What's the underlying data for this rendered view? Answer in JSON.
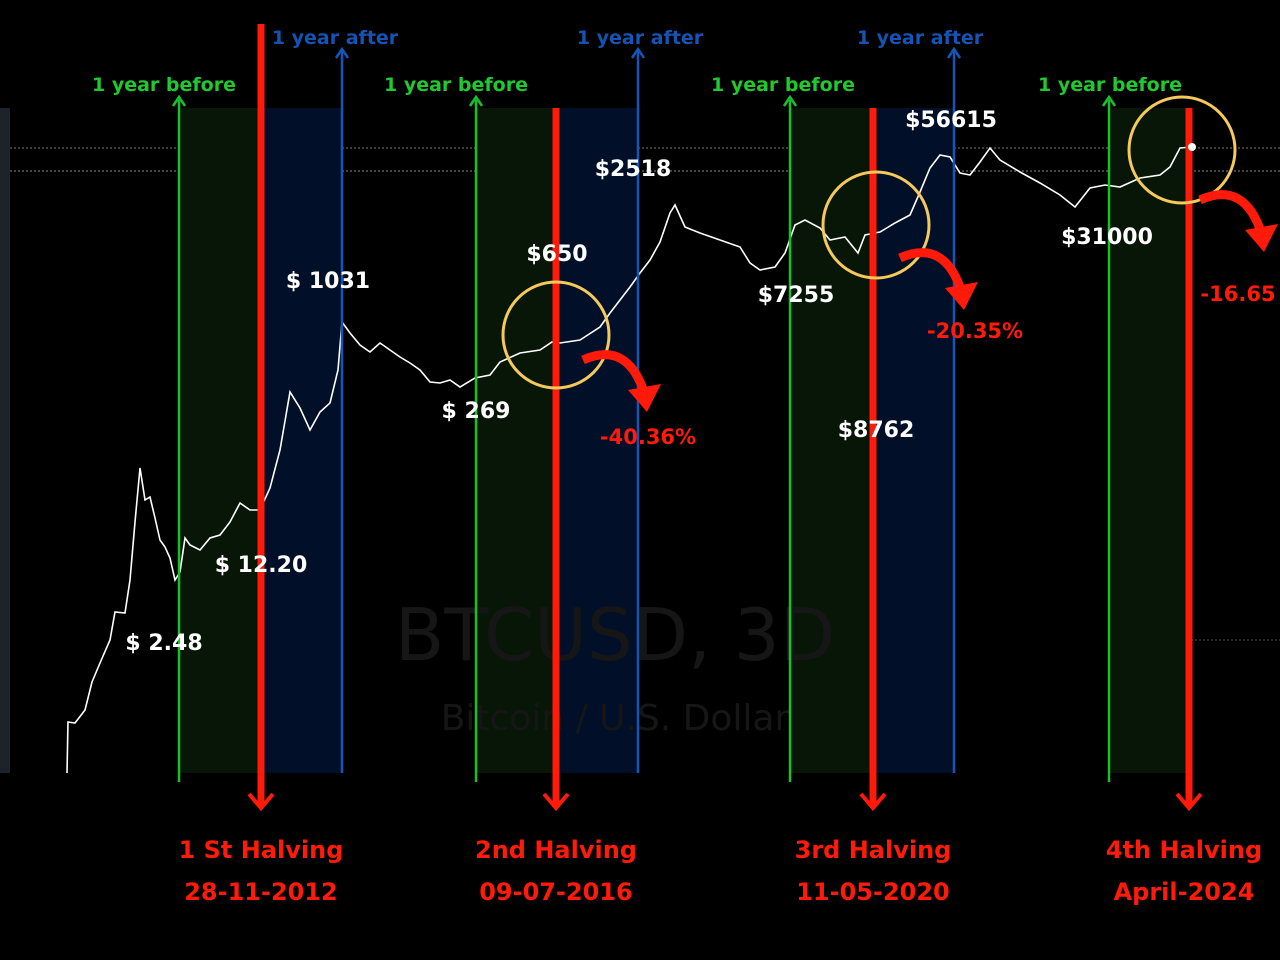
{
  "chart_data": {
    "type": "line",
    "watermark": {
      "symbol": "BTCUSD, 3D",
      "name": "Bitcoin / U.S. Dollar"
    },
    "colors": {
      "price_line": "#ffffff",
      "before_zone": "#071607",
      "after_zone": "#011028",
      "halving": "#ff1a0a",
      "before_line": "#17c12b",
      "after_line": "#1455b8",
      "circle": "#f5c95a",
      "label_before": "#1fc92f",
      "label_after": "#1553b5"
    },
    "zone_labels": {
      "before": "1 year before",
      "after": "1 year after"
    },
    "halvings": [
      {
        "name": "1 St Halving",
        "date": "28-11-2012",
        "has_after": true
      },
      {
        "name": "2nd Halving",
        "date": "09-07-2016",
        "has_after": true,
        "drop": "-40.36%"
      },
      {
        "name": "3rd Halving",
        "date": "11-05-2020",
        "has_after": true,
        "drop": "-20.35%"
      },
      {
        "name": "4th Halving",
        "date": "April-2024",
        "has_after": false,
        "drop": "-16.65"
      }
    ],
    "price_labels": [
      "$ 2.48",
      "$ 12.20",
      "$ 1031",
      "$ 269",
      "$650",
      "$2518",
      "$7255",
      "$8762",
      "$56615",
      "$31000"
    ]
  }
}
